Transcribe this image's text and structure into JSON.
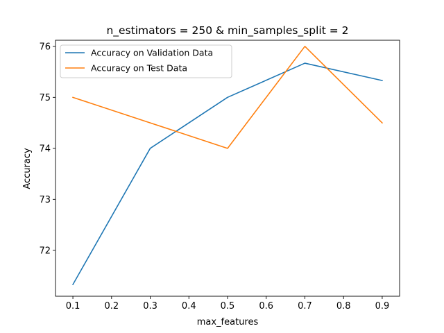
{
  "chart_data": {
    "type": "line",
    "title": "n_estimators = 250 & min_samples_split = 2",
    "xlabel": "max_features",
    "ylabel": "Accuracy",
    "x": [
      0.1,
      0.3,
      0.5,
      0.7,
      0.9
    ],
    "xlim": [
      0.055,
      0.945
    ],
    "ylim": [
      71.1,
      76.12
    ],
    "xticks": [
      0.1,
      0.2,
      0.3,
      0.4,
      0.5,
      0.6,
      0.7,
      0.8,
      0.9
    ],
    "xtick_labels": [
      "0.1",
      "0.2",
      "0.3",
      "0.4",
      "0.5",
      "0.6",
      "0.7",
      "0.8",
      "0.9"
    ],
    "yticks": [
      72,
      73,
      74,
      75,
      76
    ],
    "ytick_labels": [
      "72",
      "73",
      "74",
      "75",
      "76"
    ],
    "grid": false,
    "legend_position": "top-left",
    "series": [
      {
        "name": "Accuracy on Validation Data",
        "color": "#1f77b4",
        "values": [
          71.33,
          74.0,
          75.0,
          75.67,
          75.33
        ]
      },
      {
        "name": "Accuracy on Test Data",
        "color": "#ff7f0e",
        "values": [
          75.0,
          74.5,
          74.0,
          76.0,
          74.5
        ]
      }
    ]
  }
}
